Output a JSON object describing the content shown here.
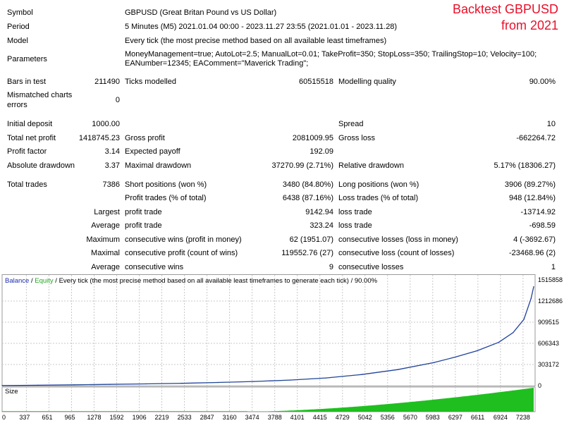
{
  "overlay": {
    "line1": "Backtest GBPUSD",
    "line2": "from 2021"
  },
  "header": {
    "symbol_label": "Symbol",
    "symbol_value": "GBPUSD (Great Britan Pound vs US Dollar)",
    "period_label": "Period",
    "period_value": "5 Minutes (M5) 2021.01.04 00:00 - 2023.11.27 23:55 (2021.01.01 - 2023.11.28)",
    "model_label": "Model",
    "model_value": "Every tick (the most precise method based on all available least timeframes)",
    "params_label": "Parameters",
    "params_line1": "MoneyManagement=true; AutoLot=2.5; ManualLot=0.01; TakeProfit=350; StopLoss=350; TrailingStop=10; Velocity=100;",
    "params_line2": "EANumber=12345; EAComment=\"Maverick Trading\";"
  },
  "stats": {
    "bars_label": "Bars in test",
    "bars_value": "211490",
    "ticks_label": "Ticks modelled",
    "ticks_value": "60515518",
    "quality_label": "Modelling quality",
    "quality_value": "90.00%",
    "mismatch_label_1": "Mismatched charts",
    "mismatch_label_2": "errors",
    "mismatch_value": "0",
    "deposit_label": "Initial deposit",
    "deposit_value": "1000.00",
    "spread_label": "Spread",
    "spread_value": "10",
    "net_label": "Total net profit",
    "net_value": "1418745.23",
    "gross_profit_label": "Gross profit",
    "gross_profit_value": "2081009.95",
    "gross_loss_label": "Gross loss",
    "gross_loss_value": "-662264.72",
    "pf_label": "Profit factor",
    "pf_value": "3.14",
    "payoff_label": "Expected payoff",
    "payoff_value": "192.09",
    "abs_dd_label": "Absolute drawdown",
    "abs_dd_value": "3.37",
    "max_dd_label": "Maximal drawdown",
    "max_dd_value": "37270.99 (2.71%)",
    "rel_dd_label": "Relative drawdown",
    "rel_dd_value": "5.17% (18306.27)",
    "trades_label": "Total trades",
    "trades_value": "7386",
    "short_label": "Short positions (won %)",
    "short_value": "3480 (84.80%)",
    "long_label": "Long positions (won %)",
    "long_value": "3906 (89.27%)",
    "profit_trades_label": "Profit trades (% of total)",
    "profit_trades_value": "6438 (87.16%)",
    "loss_trades_label": "Loss trades (% of total)",
    "loss_trades_value": "948 (12.84%)",
    "largest_label": "Largest",
    "largest_profit_label": "profit trade",
    "largest_profit_value": "9142.94",
    "largest_loss_label": "loss trade",
    "largest_loss_value": "-13714.92",
    "average_label": "Average",
    "avg_profit_label": "profit trade",
    "avg_profit_value": "323.24",
    "avg_loss_label": "loss trade",
    "avg_loss_value": "-698.59",
    "maximum_label": "Maximum",
    "max_wins_label": "consecutive wins (profit in money)",
    "max_wins_value": "62 (1951.07)",
    "max_losses_label": "consecutive losses (loss in money)",
    "max_losses_value": "4 (-3692.67)",
    "maximal_label": "Maximal",
    "maximal_profit_label": "consecutive profit (count of wins)",
    "maximal_profit_value": "119552.76 (27)",
    "maximal_loss_label": "consecutive loss (count of losses)",
    "maximal_loss_value": "-23468.96 (2)",
    "average2_label": "Average",
    "avg_wins_label": "consecutive wins",
    "avg_wins_value": "9",
    "avg_losses_label": "consecutive losses",
    "avg_losses_value": "1"
  },
  "chart": {
    "legend_balance": "Balance",
    "legend_sep": " / ",
    "legend_equity": "Equity",
    "legend_rest": " / Every tick (the most precise method based on all available least timeframes to generate each tick) / 90.00%",
    "size_label": "Size",
    "y_ticks": [
      "1515858",
      "1212686",
      "909515",
      "606343",
      "303172",
      "0"
    ],
    "x_ticks": [
      "0",
      "337",
      "651",
      "965",
      "1278",
      "1592",
      "1906",
      "2219",
      "2533",
      "2847",
      "3160",
      "3474",
      "3788",
      "4101",
      "4415",
      "4729",
      "5042",
      "5356",
      "5670",
      "5983",
      "6297",
      "6611",
      "6924",
      "7238"
    ],
    "colors": {
      "balance": "#1f2bb5",
      "equity": "#22a722",
      "grid": "#c8c8c8",
      "size": "#1fbf1f"
    }
  },
  "chart_data": {
    "type": "line",
    "x": [
      0,
      500,
      1000,
      1500,
      2000,
      2500,
      3000,
      3500,
      4000,
      4500,
      5000,
      5500,
      6000,
      6300,
      6600,
      6900,
      7100,
      7250,
      7350,
      7386
    ],
    "series": [
      {
        "name": "Balance",
        "values": [
          1000,
          6000,
          12000,
          18000,
          25000,
          33000,
          45000,
          60000,
          80000,
          110000,
          160000,
          230000,
          330000,
          410000,
          500000,
          620000,
          760000,
          950000,
          1250000,
          1418745
        ]
      }
    ],
    "xlim": [
      0,
      7386
    ],
    "ylim": [
      0,
      1515858
    ],
    "grid": true
  }
}
